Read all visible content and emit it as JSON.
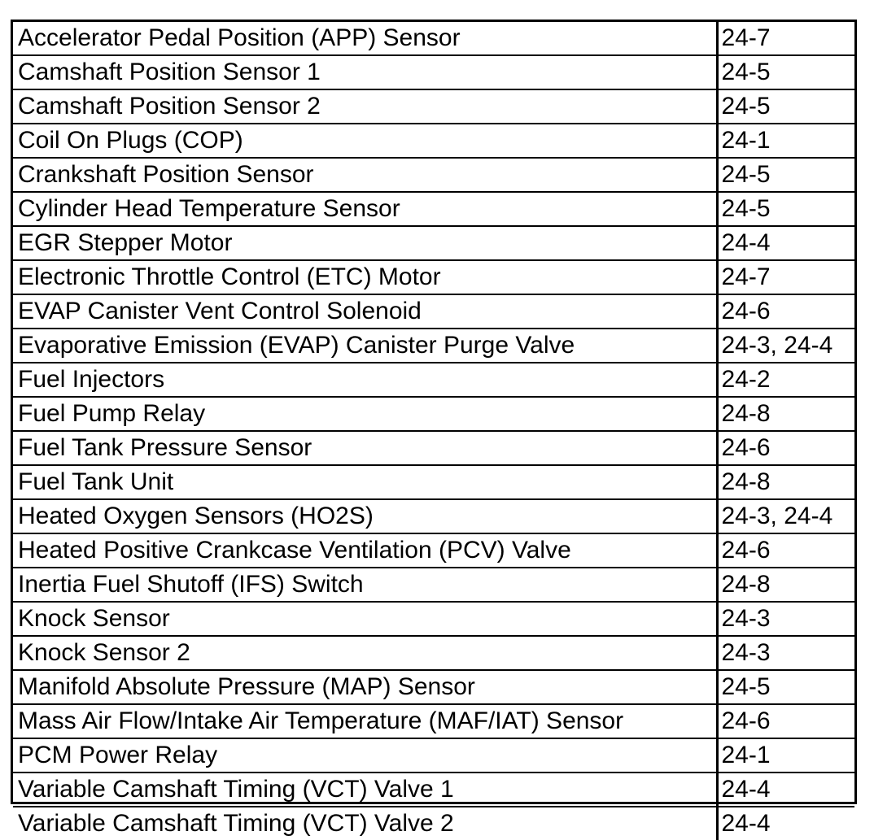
{
  "table": {
    "rows": [
      {
        "component": "Accelerator Pedal Position (APP) Sensor",
        "ref": "24-7"
      },
      {
        "component": "Camshaft Position Sensor 1",
        "ref": "24-5"
      },
      {
        "component": "Camshaft Position Sensor 2",
        "ref": "24-5"
      },
      {
        "component": "Coil On Plugs (COP)",
        "ref": "24-1"
      },
      {
        "component": "Crankshaft Position Sensor",
        "ref": "24-5"
      },
      {
        "component": "Cylinder Head Temperature Sensor",
        "ref": "24-5"
      },
      {
        "component": "EGR Stepper Motor",
        "ref": "24-4"
      },
      {
        "component": "Electronic Throttle Control (ETC) Motor",
        "ref": "24-7"
      },
      {
        "component": "EVAP Canister Vent Control Solenoid",
        "ref": "24-6"
      },
      {
        "component": "Evaporative Emission (EVAP) Canister Purge Valve",
        "ref": "24-3, 24-4"
      },
      {
        "component": "Fuel Injectors",
        "ref": "24-2"
      },
      {
        "component": "Fuel Pump Relay",
        "ref": "24-8"
      },
      {
        "component": "Fuel Tank Pressure Sensor",
        "ref": "24-6"
      },
      {
        "component": "Fuel Tank Unit",
        "ref": "24-8"
      },
      {
        "component": "Heated Oxygen Sensors (HO2S)",
        "ref": "24-3, 24-4"
      },
      {
        "component": "Heated Positive Crankcase Ventilation (PCV) Valve",
        "ref": "24-6"
      },
      {
        "component": "Inertia Fuel Shutoff (IFS) Switch",
        "ref": "24-8"
      },
      {
        "component": "Knock Sensor",
        "ref": "24-3"
      },
      {
        "component": "Knock Sensor 2",
        "ref": "24-3"
      },
      {
        "component": "Manifold Absolute Pressure (MAP) Sensor",
        "ref": "24-5"
      },
      {
        "component": "Mass Air Flow/Intake Air Temperature (MAF/IAT) Sensor",
        "ref": "24-6"
      },
      {
        "component": "PCM Power Relay",
        "ref": "24-1"
      },
      {
        "component": "Variable Camshaft Timing (VCT) Valve 1",
        "ref": "24-4"
      },
      {
        "component": "Variable Camshaft Timing (VCT) Valve 2",
        "ref": "24-4"
      }
    ]
  }
}
